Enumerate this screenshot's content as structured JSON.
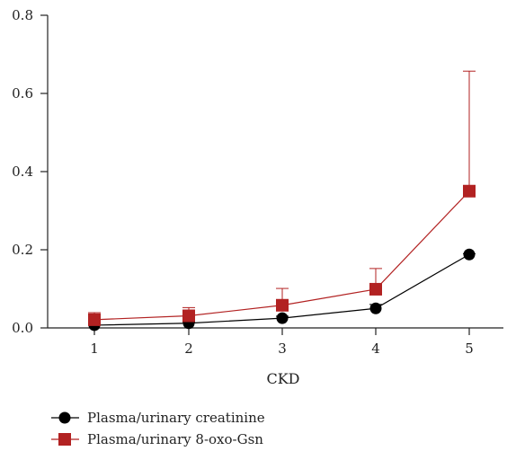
{
  "chart_data": {
    "type": "line",
    "title": "",
    "xlabel": "CKD",
    "ylabel": "",
    "x": [
      1,
      2,
      3,
      4,
      5
    ],
    "xticks": [
      "1",
      "2",
      "3",
      "4",
      "5"
    ],
    "xlim": [
      0.5,
      5.5
    ],
    "ylim": [
      0,
      0.8
    ],
    "yticks": [
      "0.0",
      "0.2",
      "0.4",
      "0.6",
      "0.8"
    ],
    "ytick_values": [
      0,
      0.2,
      0.4,
      0.6,
      0.8
    ],
    "reference_line": {
      "y": 0,
      "style": "dashed"
    },
    "legend_position": "bottom-left",
    "series": [
      {
        "name": "Plasma/urinary creatinine",
        "marker": "circle",
        "color": "#000000",
        "values": [
          0.007,
          0.012,
          0.025,
          0.05,
          0.188
        ],
        "error_upper": [
          0.01,
          0.015,
          0.03,
          0.06,
          0.19
        ]
      },
      {
        "name": "Plasma/urinary 8-oxo-Gsn",
        "marker": "square",
        "color": "#b22222",
        "values": [
          0.021,
          0.031,
          0.058,
          0.099,
          0.35
        ],
        "error_upper": [
          0.039,
          0.052,
          0.101,
          0.152,
          0.657
        ]
      }
    ]
  }
}
